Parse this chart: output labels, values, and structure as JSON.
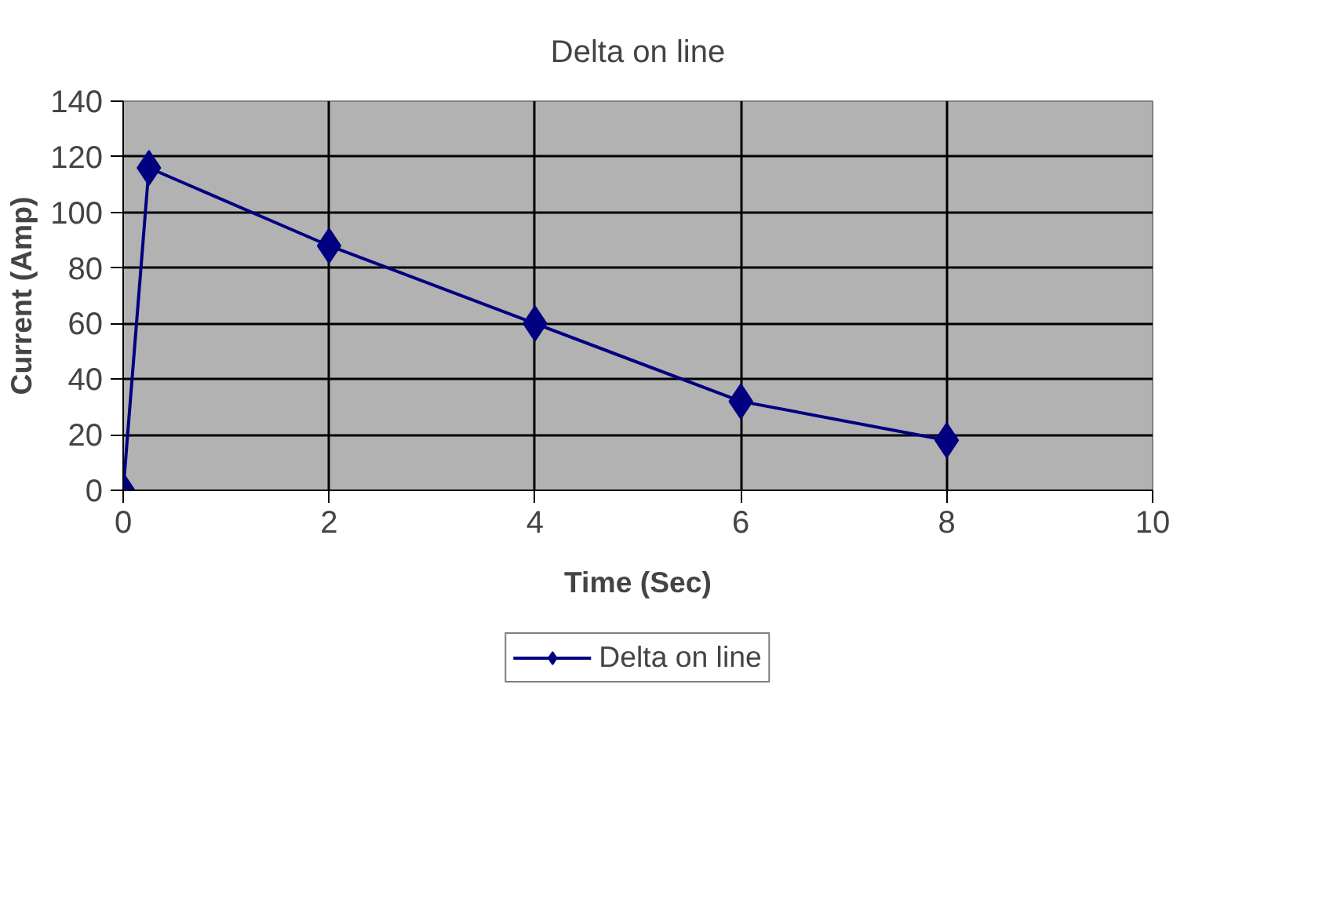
{
  "chart_data": {
    "type": "line",
    "title": "Delta on line",
    "xlabel": "Time (Sec)",
    "ylabel": "Current (Amp)",
    "x": [
      0,
      0.25,
      2,
      4,
      6,
      8
    ],
    "series": [
      {
        "name": "Delta on line",
        "color": "#000080",
        "values": [
          0,
          116,
          88,
          60,
          32,
          18
        ]
      }
    ],
    "xlim": [
      0,
      10
    ],
    "xticks": [
      0,
      2,
      4,
      6,
      8,
      10
    ],
    "ylim": [
      0,
      140
    ],
    "yticks": [
      0,
      20,
      40,
      60,
      80,
      100,
      120,
      140
    ],
    "grid": true,
    "legend": "bottom",
    "marker": "diamond",
    "line_style": "solid"
  }
}
